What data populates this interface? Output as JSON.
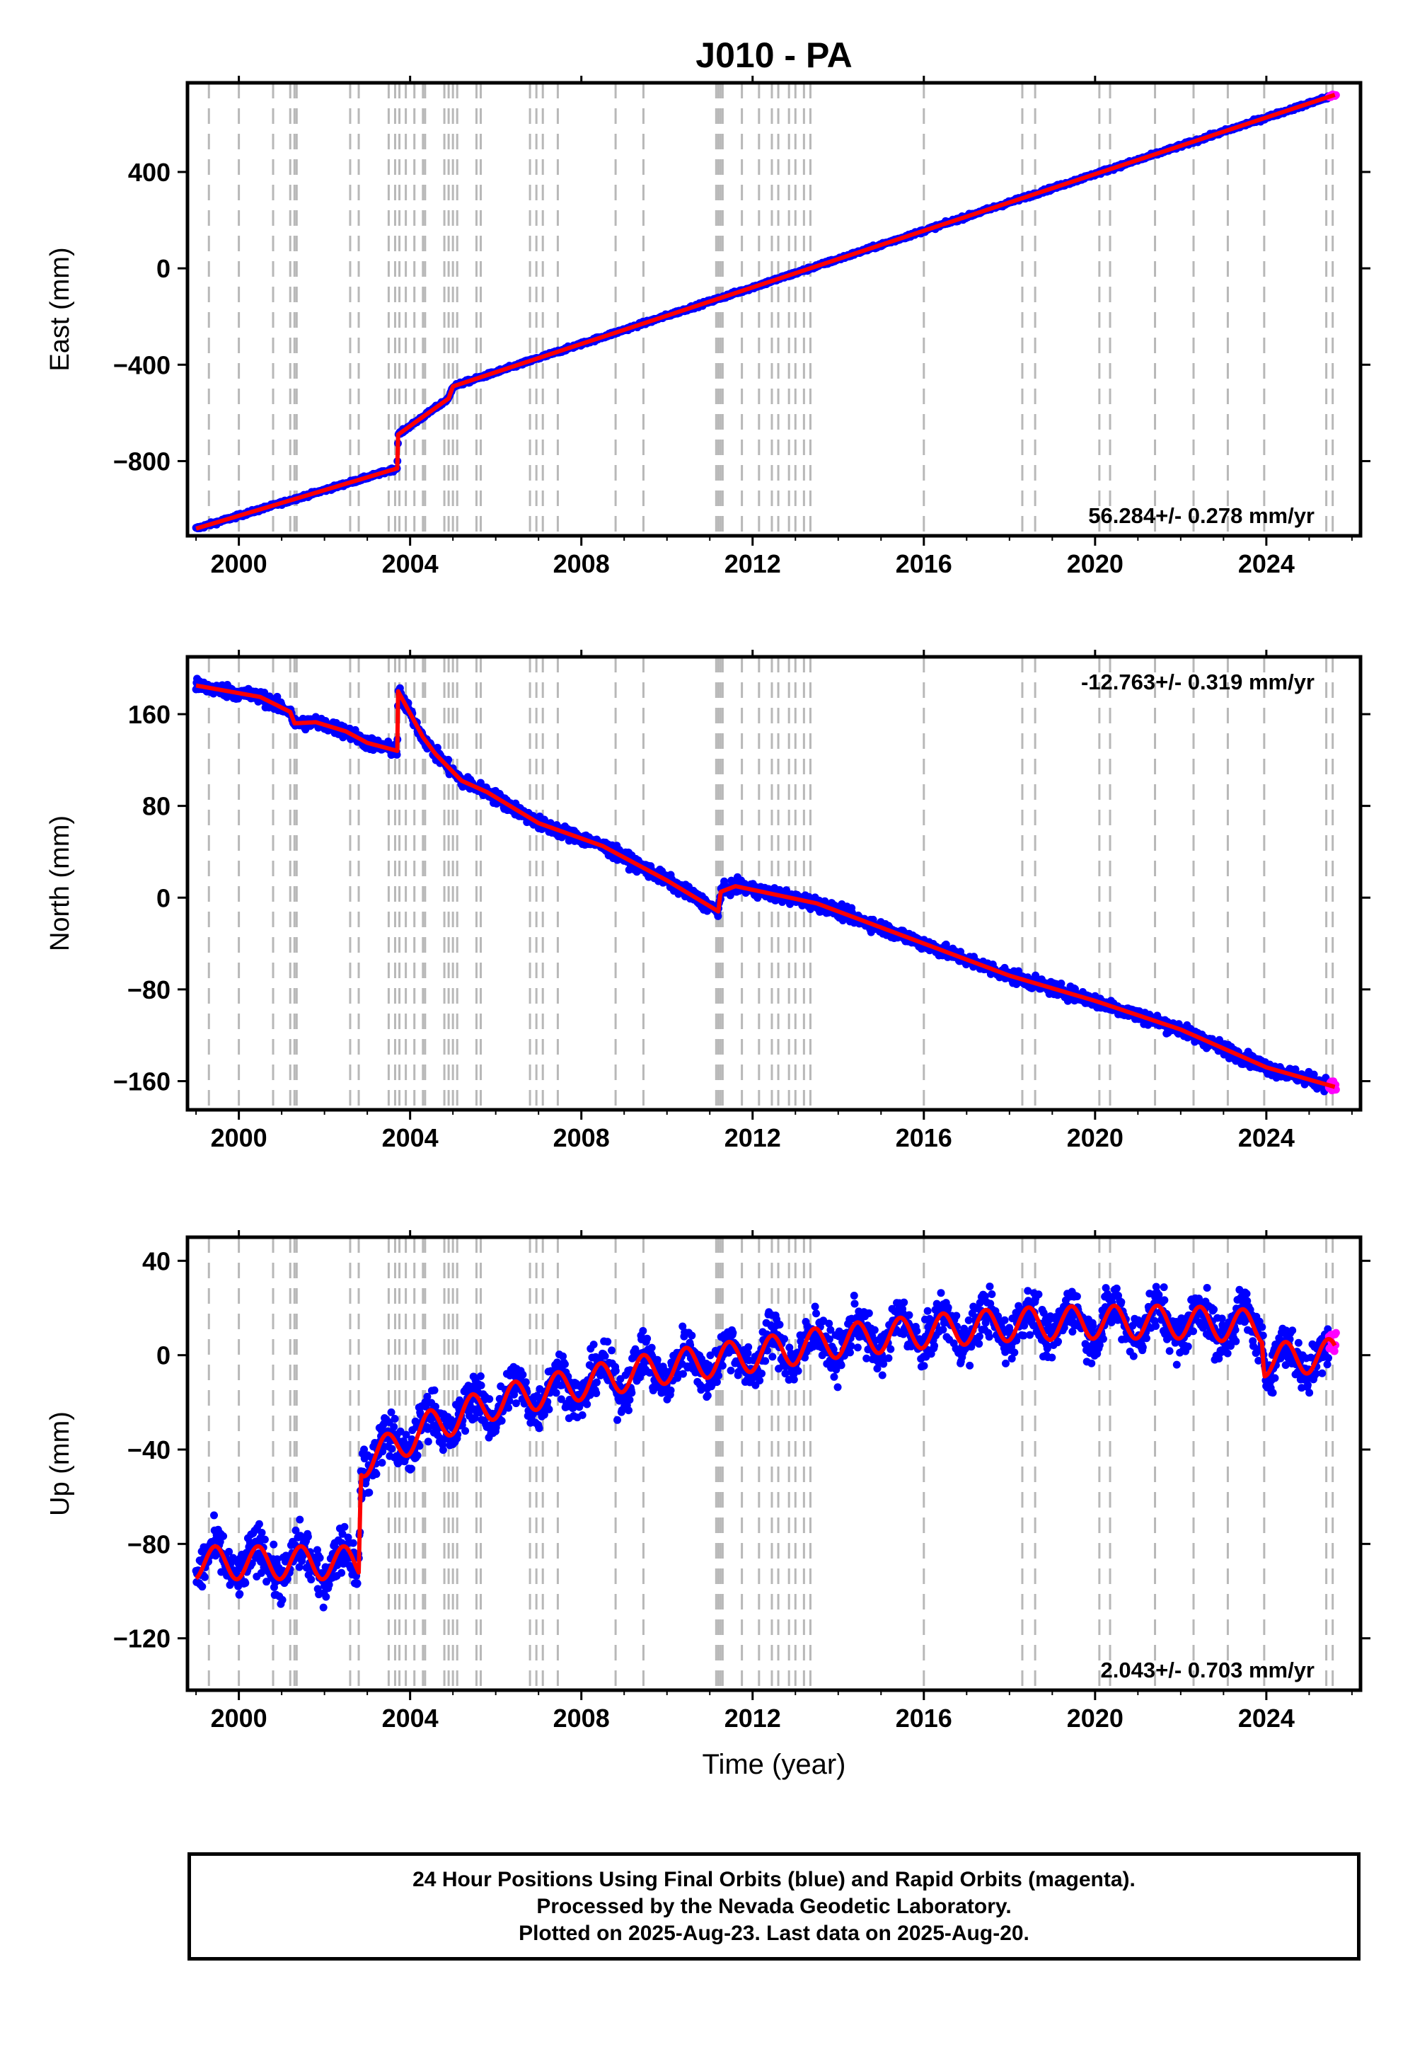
{
  "chart_data": [
    {
      "type": "scatter",
      "panel": "east",
      "title": "J010 - PA",
      "ylabel": "East (mm)",
      "xlabel": "",
      "xlim": [
        1998.8,
        2026.2
      ],
      "ylim": [
        -1110,
        770
      ],
      "x_ticks": [
        "2000",
        "2004",
        "2008",
        "2012",
        "2016",
        "2020",
        "2024"
      ],
      "y_ticks": [
        "400",
        "0",
        "−400",
        "−800"
      ],
      "rate_label": "56.284+/- 0.278 mm/yr",
      "rate_label_position": "bottom-right",
      "series": [
        {
          "name": "Final Orbits",
          "color": "#0000ff"
        },
        {
          "name": "Rapid Orbits",
          "color": "#ff00ff"
        },
        {
          "name": "Model",
          "color": "#ff0000"
        }
      ],
      "fit_points": [
        [
          1999.0,
          -1080
        ],
        [
          2003.7,
          -830
        ],
        [
          2003.72,
          -690
        ],
        [
          2004.9,
          -540
        ],
        [
          2005.0,
          -490
        ],
        [
          2025.6,
          720
        ]
      ],
      "data_noise_mm": 5
    },
    {
      "type": "scatter",
      "panel": "north",
      "ylabel": "North (mm)",
      "xlabel": "",
      "xlim": [
        1998.8,
        2026.2
      ],
      "ylim": [
        -185,
        210
      ],
      "x_ticks": [
        "2000",
        "2004",
        "2008",
        "2012",
        "2016",
        "2020",
        "2024"
      ],
      "y_ticks": [
        "160",
        "80",
        "0",
        "−80",
        "−160"
      ],
      "rate_label": "-12.763+/- 0.319 mm/yr",
      "rate_label_position": "top-right",
      "series": [
        {
          "name": "Final Orbits",
          "color": "#0000ff"
        },
        {
          "name": "Rapid Orbits",
          "color": "#ff00ff"
        },
        {
          "name": "Model",
          "color": "#ff0000"
        }
      ],
      "fit_points": [
        [
          1999.0,
          185
        ],
        [
          2000.5,
          175
        ],
        [
          2001.2,
          162
        ],
        [
          2001.3,
          152
        ],
        [
          2001.8,
          153
        ],
        [
          2002.5,
          145
        ],
        [
          2003.0,
          135
        ],
        [
          2003.7,
          128
        ],
        [
          2003.72,
          180
        ],
        [
          2004.3,
          140
        ],
        [
          2004.6,
          125
        ],
        [
          2005.2,
          102
        ],
        [
          2005.8,
          92
        ],
        [
          2007.0,
          65
        ],
        [
          2008.5,
          45
        ],
        [
          2010.0,
          15
        ],
        [
          2011.2,
          -12
        ],
        [
          2011.25,
          5
        ],
        [
          2011.6,
          10
        ],
        [
          2013.5,
          -5
        ],
        [
          2016.0,
          -40
        ],
        [
          2018.0,
          -68
        ],
        [
          2020.0,
          -90
        ],
        [
          2022.0,
          -115
        ],
        [
          2024.0,
          -148
        ],
        [
          2025.6,
          -165
        ]
      ],
      "data_noise_mm": 4
    },
    {
      "type": "scatter",
      "panel": "up",
      "ylabel": "Up (mm)",
      "xlabel": "Time (year)",
      "xlim": [
        1998.8,
        2026.2
      ],
      "ylim": [
        -142,
        50
      ],
      "x_ticks": [
        "2000",
        "2004",
        "2008",
        "2012",
        "2016",
        "2020",
        "2024"
      ],
      "y_ticks": [
        "40",
        "0",
        "−40",
        "−80",
        "−120"
      ],
      "rate_label": "2.043+/- 0.703 mm/yr",
      "rate_label_position": "bottom-right",
      "series": [
        {
          "name": "Final Orbits",
          "color": "#0000ff"
        },
        {
          "name": "Rapid Orbits",
          "color": "#ff00ff"
        },
        {
          "name": "Model",
          "color": "#ff0000"
        }
      ],
      "fit_points": [
        [
          1999.0,
          -88
        ],
        [
          2002.8,
          -88
        ],
        [
          2002.85,
          -45
        ],
        [
          2003.5,
          -40
        ],
        [
          2004.5,
          -30
        ],
        [
          2006.0,
          -20
        ],
        [
          2008.0,
          -12
        ],
        [
          2010.0,
          -5
        ],
        [
          2012.0,
          0
        ],
        [
          2014.0,
          6
        ],
        [
          2016.0,
          10
        ],
        [
          2018.0,
          13
        ],
        [
          2020.0,
          14
        ],
        [
          2022.0,
          14
        ],
        [
          2023.9,
          12
        ],
        [
          2023.95,
          -2
        ],
        [
          2025.6,
          0
        ]
      ],
      "seasonal_amplitude_mm": 7,
      "data_noise_mm": 7
    }
  ],
  "event_lines_years": [
    1999.3,
    2000.0,
    2000.8,
    2001.2,
    2001.3,
    2001.35,
    2002.6,
    2002.8,
    2003.5,
    2003.65,
    2003.75,
    2003.9,
    2004.1,
    2004.3,
    2004.35,
    2004.8,
    2004.9,
    2005.0,
    2005.1,
    2005.55,
    2005.65,
    2006.8,
    2006.95,
    2007.1,
    2007.45,
    2008.8,
    2009.45,
    2011.15,
    2011.2,
    2011.25,
    2011.3,
    2011.75,
    2012.15,
    2012.45,
    2012.6,
    2012.85,
    2013.0,
    2013.2,
    2013.35,
    2016.0,
    2018.3,
    2018.6,
    2020.1,
    2020.35,
    2021.4,
    2022.3,
    2023.1,
    2023.95,
    2025.4,
    2025.55
  ],
  "footer": {
    "line1": "24 Hour Positions Using Final Orbits (blue) and Rapid Orbits (magenta).",
    "line2": "Processed by the Nevada Geodetic Laboratory.",
    "line3": "Plotted on 2025-Aug-23. Last data on 2025-Aug-20."
  }
}
